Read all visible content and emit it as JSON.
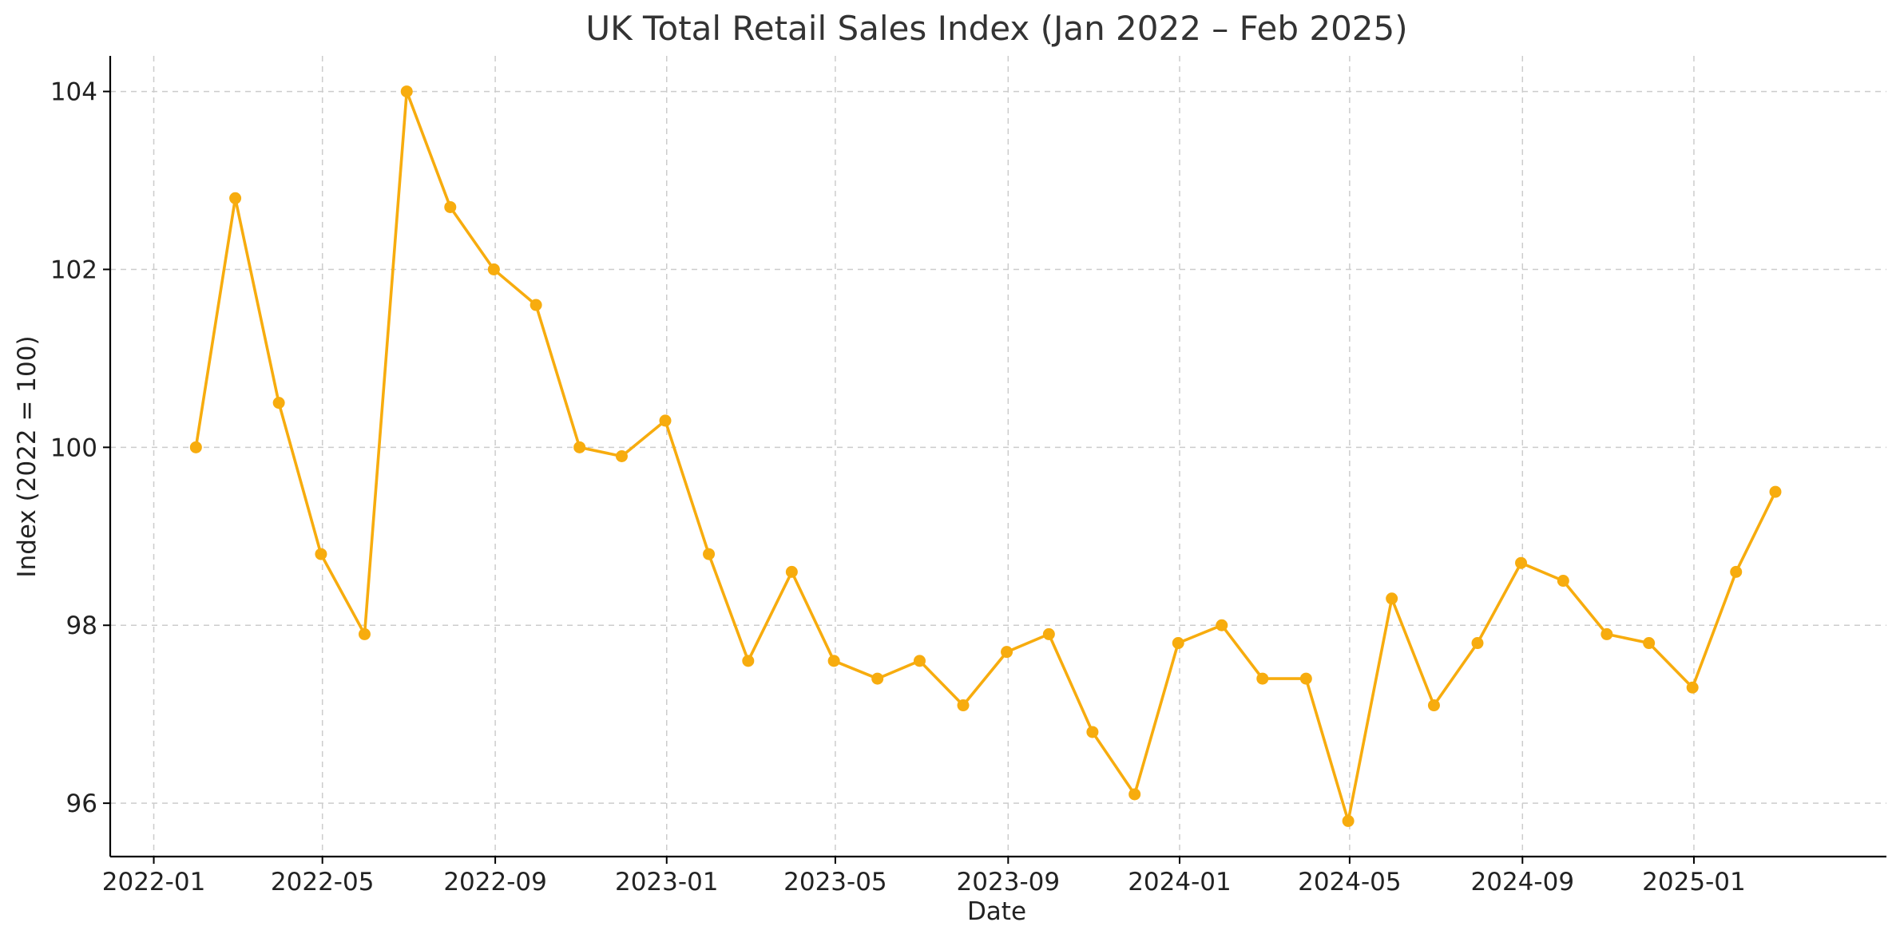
{
  "chart_data": {
    "type": "line",
    "title": "UK Total Retail Sales Index (Jan 2022 – Feb 2025)",
    "xlabel": "Date",
    "ylabel": "Index (2022 = 100)",
    "ylim": [
      95.4,
      104.4
    ],
    "xlim": [
      "2021-12-01",
      "2025-05-18"
    ],
    "x_ticks": [
      "2022-01",
      "2022-05",
      "2022-09",
      "2023-01",
      "2023-05",
      "2023-09",
      "2024-01",
      "2024-05",
      "2024-09",
      "2025-01"
    ],
    "y_ticks": [
      96,
      98,
      100,
      102,
      104
    ],
    "grid": true,
    "color": "#f7ac0e",
    "series": [
      {
        "x": [
          "2022-01-31",
          "2022-02-28",
          "2022-03-31",
          "2022-04-30",
          "2022-05-31",
          "2022-06-30",
          "2022-07-31",
          "2022-08-31",
          "2022-09-30",
          "2022-10-31",
          "2022-11-30",
          "2022-12-31",
          "2023-01-31",
          "2023-02-28",
          "2023-03-31",
          "2023-04-30",
          "2023-05-31",
          "2023-06-30",
          "2023-07-31",
          "2023-08-31",
          "2023-09-30",
          "2023-10-31",
          "2023-11-30",
          "2023-12-31",
          "2024-01-31",
          "2024-02-29",
          "2024-03-31",
          "2024-04-30",
          "2024-05-31",
          "2024-06-30",
          "2024-07-31",
          "2024-08-31",
          "2024-09-30",
          "2024-10-31",
          "2024-11-30",
          "2024-12-31",
          "2025-01-31",
          "2025-02-28"
        ],
        "values": [
          100.0,
          102.8,
          100.5,
          98.8,
          97.9,
          104.0,
          102.7,
          102.0,
          101.6,
          100.0,
          99.9,
          100.3,
          98.8,
          97.6,
          98.6,
          97.6,
          97.4,
          97.6,
          97.1,
          97.7,
          97.9,
          96.8,
          96.1,
          97.8,
          98.0,
          97.4,
          97.4,
          95.8,
          98.3,
          97.1,
          97.8,
          98.7,
          98.5,
          97.9,
          97.8,
          97.3,
          98.6,
          99.5
        ]
      }
    ]
  }
}
